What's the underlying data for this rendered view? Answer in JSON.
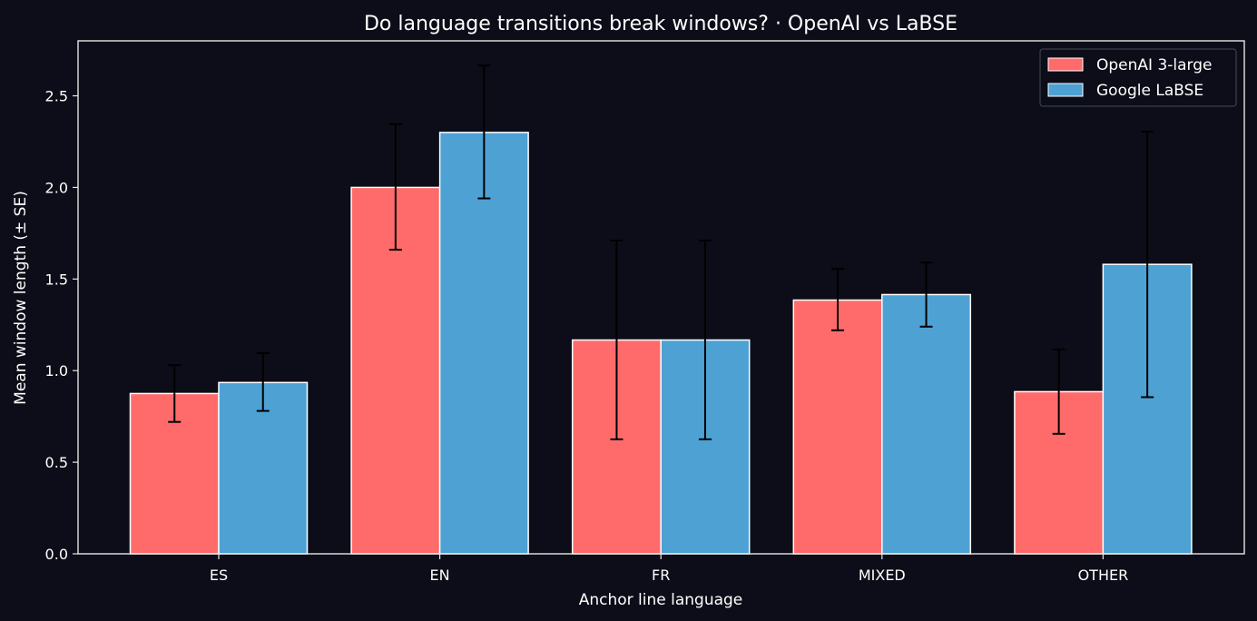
{
  "chart_data": {
    "type": "bar",
    "title": "Do language transitions break windows?  ·  OpenAI vs LaBSE",
    "xlabel": "Anchor line language",
    "ylabel": "Mean window length (± SE)",
    "categories": [
      "ES",
      "EN",
      "FR",
      "MIXED",
      "OTHER"
    ],
    "ylim": [
      0,
      2.8
    ],
    "yticks": [
      "0.0",
      "0.5",
      "1.0",
      "1.5",
      "2.0",
      "2.5"
    ],
    "legend_position": "top-right",
    "grid": false,
    "series": [
      {
        "name": "OpenAI 3-large",
        "color": "#ff6b6b",
        "values": [
          0.875,
          2.0,
          1.167,
          1.385,
          0.885
        ],
        "err_low": [
          0.72,
          1.66,
          0.625,
          1.22,
          0.655
        ],
        "err_high": [
          1.03,
          2.345,
          1.71,
          1.555,
          1.115
        ]
      },
      {
        "name": "Google LaBSE",
        "color": "#4ea1d3",
        "values": [
          0.935,
          2.3,
          1.167,
          1.415,
          1.58
        ],
        "err_low": [
          0.78,
          1.94,
          0.625,
          1.24,
          0.855
        ],
        "err_high": [
          1.095,
          2.665,
          1.71,
          1.59,
          2.305
        ]
      }
    ]
  }
}
